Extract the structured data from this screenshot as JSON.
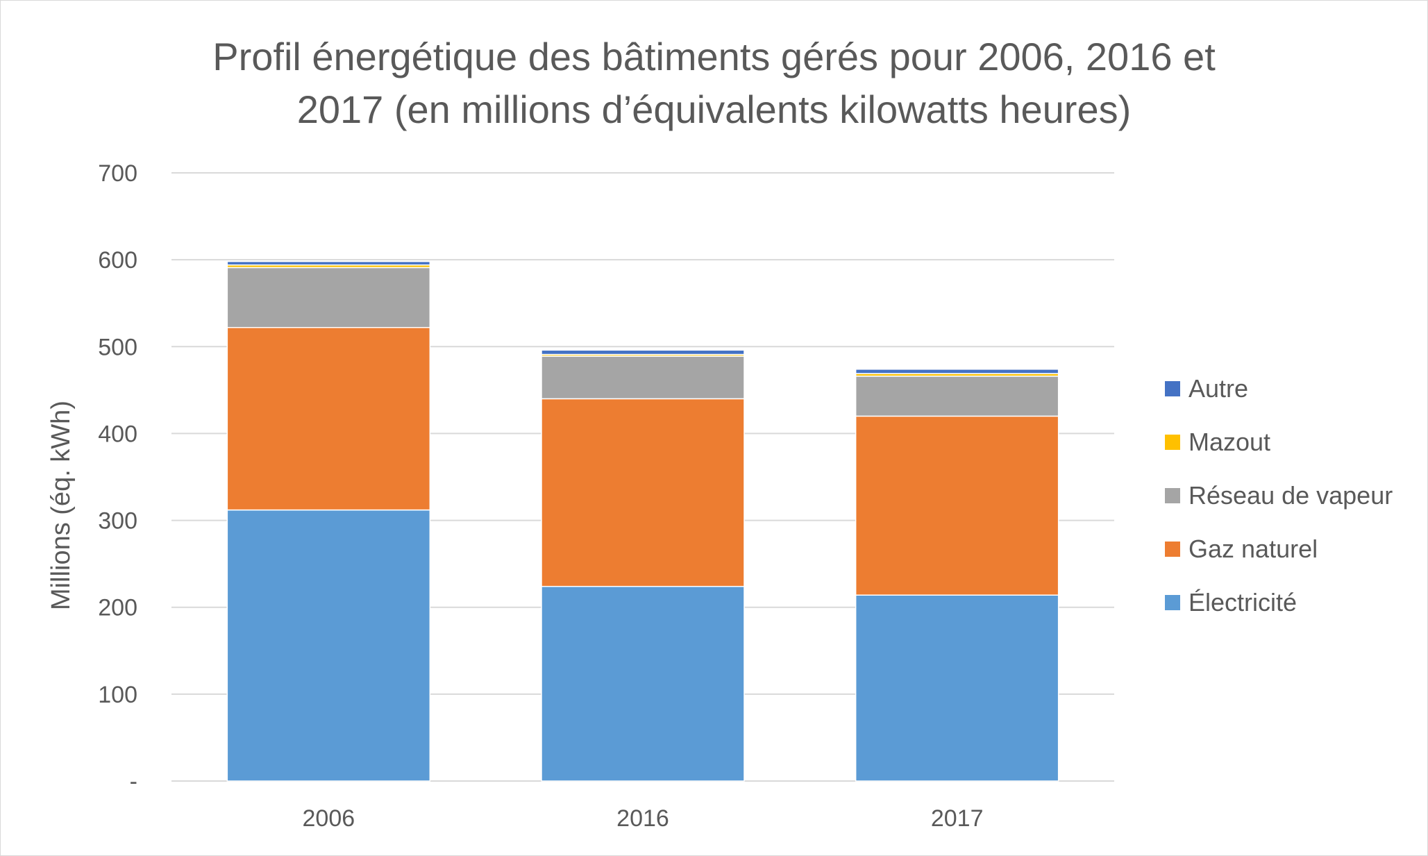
{
  "chart_data": {
    "type": "bar",
    "stacked": true,
    "title_line1": "Profil énergétique des bâtiments gérés pour 2006, 2016 et",
    "title_line2": "2017 (en millions d’équivalents kilowatts heures)",
    "ylabel": "Millions (éq. kWh)",
    "xlabel": "",
    "categories": [
      "2006",
      "2016",
      "2017"
    ],
    "ylim": [
      0,
      700
    ],
    "y_ticks": [
      0,
      100,
      200,
      300,
      400,
      500,
      600,
      700
    ],
    "y_tick_labels": [
      "-",
      "100",
      "200",
      "300",
      "400",
      "500",
      "600",
      "700"
    ],
    "grid": true,
    "legend_position": "right",
    "series": [
      {
        "name": "Électricité",
        "color": "#5b9bd5",
        "values": [
          312,
          224,
          214
        ]
      },
      {
        "name": "Gaz naturel",
        "color": "#ed7d31",
        "values": [
          210,
          216,
          206
        ]
      },
      {
        "name": "Réseau de vapeur",
        "color": "#a5a5a5",
        "values": [
          69,
          49,
          46
        ]
      },
      {
        "name": "Mazout",
        "color": "#ffc000",
        "values": [
          3,
          2,
          3
        ]
      },
      {
        "name": "Autre",
        "color": "#4472c4",
        "values": [
          4,
          5,
          5
        ]
      }
    ]
  }
}
